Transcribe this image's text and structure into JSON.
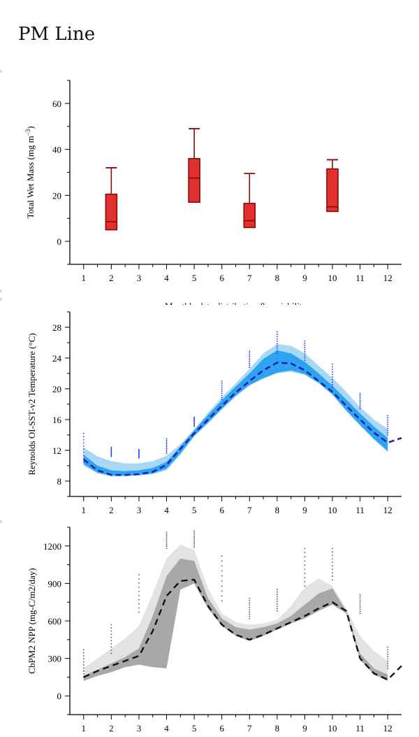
{
  "page": {
    "title": "PM Line"
  },
  "chart_data": [
    {
      "type": "box",
      "ylabel": "Total Wet Mass (mg m",
      "ylabel_sup": "−3",
      "ylabel_tail": ")",
      "xlabel": "Monthly data distribution & variability",
      "ylim": [
        -10,
        70
      ],
      "xlim": [
        0.5,
        12.5
      ],
      "yticks": [
        0,
        20,
        40,
        60
      ],
      "xticks": [
        1,
        2,
        3,
        4,
        5,
        6,
        7,
        8,
        9,
        10,
        11,
        12
      ],
      "colors": {
        "box_fill": "#e03030",
        "box_edge": "#8b0a0a"
      },
      "boxes": [
        {
          "x": 2,
          "min": 5,
          "q1": 5,
          "median": 8.5,
          "q3": 20.5,
          "max": 32
        },
        {
          "x": 5,
          "min": 17,
          "q1": 17,
          "median": 27.5,
          "q3": 36,
          "max": 49
        },
        {
          "x": 7,
          "min": 6,
          "q1": 6,
          "median": 9,
          "q3": 16.5,
          "max": 29.5
        },
        {
          "x": 10,
          "min": 13,
          "q1": 13,
          "median": 15,
          "q3": 31.5,
          "max": 35.5
        }
      ]
    },
    {
      "type": "line",
      "ylabel": "Reynolds OI-SST-v2 Temperature (°C)",
      "ylim": [
        6,
        30
      ],
      "xlim": [
        0.5,
        12.5
      ],
      "yticks": [
        8,
        12,
        16,
        20,
        24,
        28
      ],
      "xticks": [
        1,
        2,
        3,
        4,
        5,
        6,
        7,
        8,
        9,
        10,
        11,
        12
      ],
      "colors": {
        "outer_band": "#a9d8f5",
        "inner_band": "#2ea3f2",
        "mean_line": "#1a1aa8",
        "points": "#2233ff"
      },
      "mean": {
        "x": [
          1,
          1.5,
          2,
          2.5,
          3,
          3.5,
          4,
          4.5,
          5,
          5.5,
          6,
          6.5,
          7,
          7.5,
          8,
          8.5,
          9,
          9.5,
          10,
          10.5,
          11,
          11.5,
          12,
          12.5
        ],
        "y": [
          10.8,
          9.4,
          8.8,
          8.8,
          8.9,
          9.2,
          10.1,
          12.2,
          14.2,
          16.0,
          17.8,
          19.5,
          21.0,
          22.4,
          23.4,
          23.3,
          22.4,
          21.0,
          19.6,
          17.8,
          16.0,
          14.3,
          13.0,
          13.6
        ]
      },
      "outer_band": {
        "x": [
          1,
          1.5,
          2,
          2.5,
          3,
          3.5,
          4,
          4.5,
          5,
          5.5,
          6,
          6.5,
          7,
          7.5,
          8,
          8.5,
          9,
          9.5,
          10,
          10.5,
          11,
          11.5,
          12
        ],
        "upper": [
          12.4,
          11.2,
          10.6,
          10.3,
          10.3,
          10.6,
          11.3,
          12.8,
          14.7,
          16.9,
          18.9,
          20.7,
          22.6,
          24.6,
          25.8,
          25.6,
          24.6,
          23.0,
          21.4,
          19.6,
          17.6,
          16.0,
          14.8
        ],
        "lower": [
          10.0,
          9.0,
          8.6,
          8.6,
          8.7,
          8.9,
          9.4,
          11.4,
          13.8,
          15.5,
          17.3,
          19.0,
          20.4,
          21.3,
          22.0,
          22.2,
          21.8,
          20.7,
          19.2,
          17.1,
          15.2,
          13.4,
          11.8
        ]
      },
      "inner_band": {
        "x": [
          1,
          1.5,
          2,
          2.5,
          3,
          3.5,
          4,
          4.5,
          5,
          5.5,
          6,
          6.5,
          7,
          7.5,
          8,
          8.5,
          9,
          9.5,
          10,
          10.5,
          11,
          11.5,
          12
        ],
        "upper": [
          11.4,
          10.0,
          9.4,
          9.3,
          9.4,
          9.7,
          10.5,
          12.5,
          14.6,
          16.6,
          18.5,
          20.3,
          22.0,
          23.9,
          25.0,
          24.6,
          23.5,
          22.0,
          20.4,
          18.6,
          16.8,
          15.1,
          13.6
        ],
        "lower": [
          10.2,
          9.1,
          8.7,
          8.7,
          8.8,
          9.0,
          9.6,
          11.6,
          13.9,
          15.6,
          17.4,
          19.1,
          20.5,
          21.4,
          22.1,
          22.4,
          21.9,
          20.8,
          19.3,
          17.2,
          15.3,
          13.5,
          11.9
        ]
      },
      "points": {
        "x": [
          1,
          2,
          3,
          4,
          5,
          6,
          7,
          8,
          9,
          10,
          11,
          12
        ],
        "ymin": [
          10.5,
          11.2,
          11.0,
          11.6,
          15.1,
          18.6,
          22.8,
          24.6,
          23.7,
          20.2,
          17.4,
          14.0
        ],
        "ymax": [
          14.2,
          12.4,
          12.1,
          13.5,
          16.3,
          21.0,
          24.9,
          27.4,
          26.2,
          23.2,
          19.4,
          16.5
        ]
      }
    },
    {
      "type": "line",
      "ylabel": "CbPM2 NPP (mg-C/m2/day)",
      "ylim": [
        -150,
        1350
      ],
      "xlim": [
        0.5,
        12.5
      ],
      "yticks": [
        0,
        300,
        600,
        900,
        1200
      ],
      "xticks": [
        1,
        2,
        3,
        4,
        5,
        6,
        7,
        8,
        9,
        10,
        11,
        12
      ],
      "colors": {
        "outer_band": "#e3e3e3",
        "inner_band": "#a8a8a8",
        "mean_line": "#111111",
        "points": "#555555"
      },
      "mean": {
        "x": [
          1,
          1.5,
          2,
          2.5,
          3,
          3.5,
          4,
          4.5,
          5,
          5.5,
          6,
          6.5,
          7,
          7.5,
          8,
          8.5,
          9,
          9.5,
          10,
          10.5,
          11,
          11.5,
          12,
          12.5
        ],
        "y": [
          150,
          200,
          240,
          280,
          320,
          520,
          800,
          920,
          930,
          720,
          570,
          490,
          450,
          490,
          540,
          590,
          640,
          700,
          750,
          680,
          300,
          180,
          130,
          240
        ]
      },
      "outer_band": {
        "x": [
          1,
          1.5,
          2,
          2.5,
          3,
          3.5,
          4,
          4.5,
          5,
          5.5,
          6,
          6.5,
          7,
          7.5,
          8,
          8.5,
          9,
          9.5,
          10,
          10.5,
          11,
          11.5,
          12
        ],
        "upper": [
          220,
          300,
          380,
          460,
          560,
          820,
          1100,
          1210,
          1170,
          860,
          660,
          590,
          570,
          580,
          610,
          720,
          870,
          940,
          880,
          700,
          480,
          360,
          280
        ],
        "lower": [
          120,
          160,
          190,
          230,
          250,
          230,
          230,
          850,
          900,
          700,
          560,
          480,
          440,
          480,
          530,
          580,
          620,
          680,
          730,
          660,
          290,
          170,
          120
        ]
      },
      "inner_band": {
        "x": [
          1,
          1.5,
          2,
          2.5,
          3,
          3.5,
          4,
          4.5,
          5,
          5.5,
          6,
          6.5,
          7,
          7.5,
          8,
          8.5,
          9,
          9.5,
          10,
          10.5,
          11,
          11.5,
          12
        ],
        "upper": [
          160,
          210,
          260,
          310,
          380,
          640,
          960,
          1100,
          1080,
          780,
          620,
          550,
          530,
          550,
          580,
          640,
          730,
          820,
          860,
          680,
          340,
          220,
          170
        ],
        "lower": [
          120,
          160,
          190,
          230,
          250,
          230,
          220,
          850,
          900,
          700,
          560,
          480,
          440,
          480,
          530,
          580,
          620,
          680,
          730,
          660,
          290,
          170,
          120
        ]
      },
      "points": {
        "x": [
          1,
          2,
          3,
          4,
          5,
          6,
          7,
          8,
          9,
          10,
          11,
          12
        ],
        "ymin": [
          150,
          340,
          670,
          1180,
          1190,
          760,
          620,
          680,
          880,
          930,
          660,
          220
        ],
        "ymax": [
          370,
          570,
          970,
          1310,
          1320,
          1120,
          780,
          850,
          1180,
          1180,
          810,
          390
        ]
      }
    }
  ]
}
